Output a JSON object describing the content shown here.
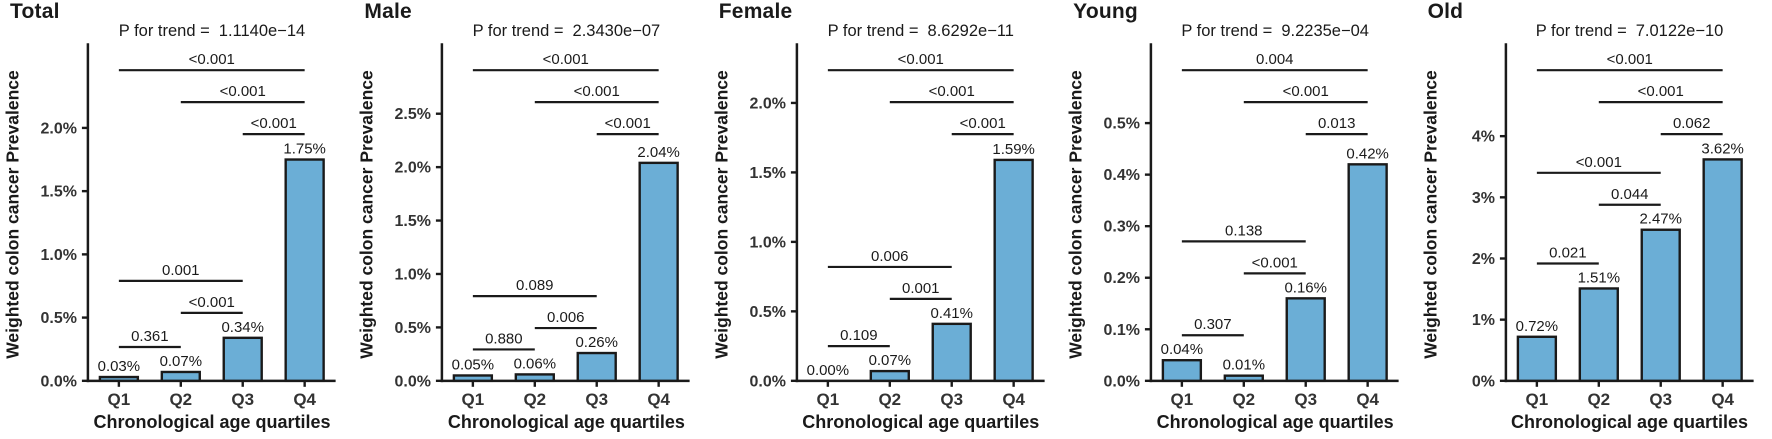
{
  "figure": {
    "ylabel": "Weighted colon cancer Prevalence",
    "xlabel": "Chronological age quartiles",
    "bar_color": "#6BAED6",
    "bar_edge_color": "#1a1a1a",
    "axis_color": "#1a1a1a",
    "tick_label_color": "#333333"
  },
  "chart_data": [
    {
      "type": "bar",
      "title": "Total",
      "p_label": "P for trend =",
      "p_value": "1.1140e−14",
      "categories": [
        "Q1",
        "Q2",
        "Q3",
        "Q4"
      ],
      "values": [
        0.03,
        0.07,
        0.34,
        1.75
      ],
      "bar_labels": [
        "0.03%",
        "0.07%",
        "0.34%",
        "1.75%"
      ],
      "xlabel": "Chronological age quartiles",
      "ylabel": "Weighted colon cancer Prevalence",
      "y_ticks": {
        "values": [
          0,
          0.5,
          1.0,
          1.5,
          2.0
        ],
        "labels": [
          "0.0%",
          "0.5%",
          "1.0%",
          "1.5%",
          "2.0%"
        ]
      },
      "ylim": [
        0,
        2.67
      ],
      "grid": false,
      "comparisons": [
        {
          "a": 0,
          "b": 1,
          "label": "0.361"
        },
        {
          "a": 1,
          "b": 2,
          "label": "<0.001"
        },
        {
          "a": 0,
          "b": 2,
          "label": "0.001"
        },
        {
          "a": 2,
          "b": 3,
          "label": "<0.001"
        },
        {
          "a": 1,
          "b": 3,
          "label": "<0.001"
        },
        {
          "a": 0,
          "b": 3,
          "label": "<0.001"
        }
      ]
    },
    {
      "type": "bar",
      "title": "Male",
      "p_label": "P for trend =",
      "p_value": "2.3430e−07",
      "categories": [
        "Q1",
        "Q2",
        "Q3",
        "Q4"
      ],
      "values": [
        0.05,
        0.06,
        0.26,
        2.04
      ],
      "bar_labels": [
        "0.05%",
        "0.06%",
        "0.26%",
        "2.04%"
      ],
      "xlabel": "Chronological age quartiles",
      "ylabel": "Weighted colon cancer Prevalence",
      "y_ticks": {
        "values": [
          0,
          0.5,
          1.0,
          1.5,
          2.0,
          2.5
        ],
        "labels": [
          "0.0%",
          "0.5%",
          "1.0%",
          "1.5%",
          "2.0%",
          "2.5%"
        ]
      },
      "ylim": [
        0,
        3.16
      ],
      "grid": false,
      "comparisons": [
        {
          "a": 0,
          "b": 1,
          "label": "0.880"
        },
        {
          "a": 1,
          "b": 2,
          "label": "0.006"
        },
        {
          "a": 0,
          "b": 2,
          "label": "0.089"
        },
        {
          "a": 2,
          "b": 3,
          "label": "<0.001"
        },
        {
          "a": 1,
          "b": 3,
          "label": "<0.001"
        },
        {
          "a": 0,
          "b": 3,
          "label": "<0.001"
        }
      ]
    },
    {
      "type": "bar",
      "title": "Female",
      "p_label": "P for trend =",
      "p_value": "8.6292e−11",
      "categories": [
        "Q1",
        "Q2",
        "Q3",
        "Q4"
      ],
      "values": [
        0.0,
        0.07,
        0.41,
        1.59
      ],
      "bar_labels": [
        "0.00%",
        "0.07%",
        "0.41%",
        "1.59%"
      ],
      "xlabel": "Chronological age quartiles",
      "ylabel": "Weighted colon cancer Prevalence",
      "y_ticks": {
        "values": [
          0,
          0.5,
          1.0,
          1.5,
          2.0
        ],
        "labels": [
          "0.0%",
          "0.5%",
          "1.0%",
          "1.5%",
          "2.0%"
        ]
      },
      "ylim": [
        0,
        2.43
      ],
      "grid": false,
      "comparisons": [
        {
          "a": 0,
          "b": 1,
          "label": "0.109"
        },
        {
          "a": 1,
          "b": 2,
          "label": "0.001"
        },
        {
          "a": 0,
          "b": 2,
          "label": "0.006"
        },
        {
          "a": 2,
          "b": 3,
          "label": "<0.001"
        },
        {
          "a": 1,
          "b": 3,
          "label": "<0.001"
        },
        {
          "a": 0,
          "b": 3,
          "label": "<0.001"
        }
      ]
    },
    {
      "type": "bar",
      "title": "Young",
      "p_label": "P for trend =",
      "p_value": "9.2235e−04",
      "categories": [
        "Q1",
        "Q2",
        "Q3",
        "Q4"
      ],
      "values": [
        0.04,
        0.01,
        0.16,
        0.42
      ],
      "bar_labels": [
        "0.04%",
        "0.01%",
        "0.16%",
        "0.42%"
      ],
      "xlabel": "Chronological age quartiles",
      "ylabel": "Weighted colon cancer Prevalence",
      "y_ticks": {
        "values": [
          0,
          0.1,
          0.2,
          0.3,
          0.4,
          0.5
        ],
        "labels": [
          "0.0%",
          "0.1%",
          "0.2%",
          "0.3%",
          "0.4%",
          "0.5%"
        ]
      },
      "ylim": [
        0,
        0.655
      ],
      "grid": false,
      "comparisons": [
        {
          "a": 0,
          "b": 1,
          "label": "0.307"
        },
        {
          "a": 1,
          "b": 2,
          "label": "<0.001"
        },
        {
          "a": 0,
          "b": 2,
          "label": "0.138"
        },
        {
          "a": 2,
          "b": 3,
          "label": "0.013"
        },
        {
          "a": 1,
          "b": 3,
          "label": "<0.001"
        },
        {
          "a": 0,
          "b": 3,
          "label": "0.004"
        }
      ]
    },
    {
      "type": "bar",
      "title": "Old",
      "p_label": "P for trend =",
      "p_value": "7.0122e−10",
      "categories": [
        "Q1",
        "Q2",
        "Q3",
        "Q4"
      ],
      "values": [
        0.72,
        1.51,
        2.47,
        3.62
      ],
      "bar_labels": [
        "0.72%",
        "1.51%",
        "2.47%",
        "3.62%"
      ],
      "xlabel": "Chronological age quartiles",
      "ylabel": "Weighted colon cancer Prevalence",
      "y_ticks": {
        "values": [
          0,
          1,
          2,
          3,
          4
        ],
        "labels": [
          "0%",
          "1%",
          "2%",
          "3%",
          "4%"
        ]
      },
      "ylim": [
        0,
        5.52
      ],
      "grid": false,
      "comparisons": [
        {
          "a": 0,
          "b": 1,
          "label": "0.021"
        },
        {
          "a": 1,
          "b": 2,
          "label": "0.044"
        },
        {
          "a": 0,
          "b": 2,
          "label": "<0.001"
        },
        {
          "a": 2,
          "b": 3,
          "label": "0.062"
        },
        {
          "a": 1,
          "b": 3,
          "label": "<0.001"
        },
        {
          "a": 0,
          "b": 3,
          "label": "<0.001"
        }
      ]
    }
  ]
}
